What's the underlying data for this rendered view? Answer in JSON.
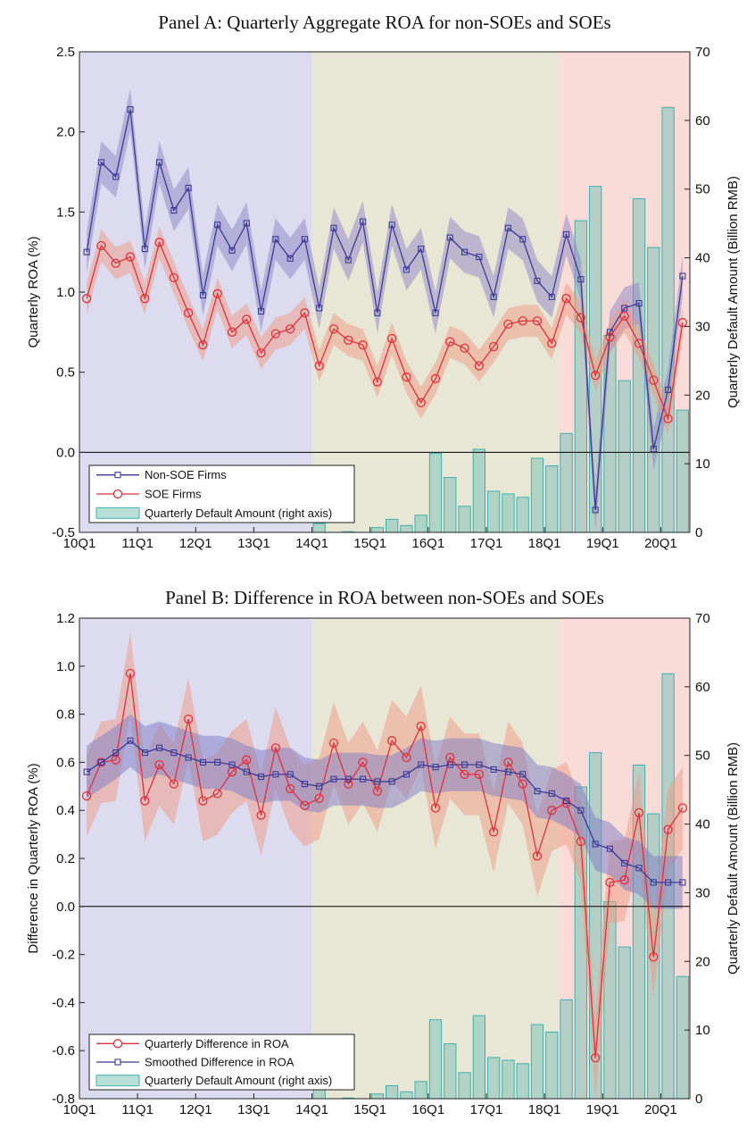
{
  "colors": {
    "nonsoe": "#3a3a96",
    "nonsoe_band": "#8e86c4",
    "soe": "#e0303c",
    "soe_band": "#ee9a82",
    "bar_fill": "#7fc4b8",
    "bar_edge": "#3fb0b0",
    "bg_period1": "#dddbef",
    "bg_period2": "#e8e7d6",
    "bg_period3": "#f9dbd8",
    "smooth_band": "#7e7cc6"
  },
  "x_ticks": [
    "10Q1",
    "11Q1",
    "12Q1",
    "13Q1",
    "14Q1",
    "15Q1",
    "16Q1",
    "17Q1",
    "18Q1",
    "19Q1",
    "20Q1"
  ],
  "chart_data": [
    {
      "type": "line",
      "title": "Panel A: Quarterly Aggregate ROA for non-SOEs and SOEs",
      "ylabel": "Quarterly ROA (%)",
      "y2label": "Quarterly Default Amount (Billion RMB)",
      "ylim": [
        -0.5,
        2.5
      ],
      "yticks": [
        "-0.5",
        "0.0",
        "0.5",
        "1.0",
        "1.5",
        "2.0",
        "2.5"
      ],
      "y2lim": [
        0,
        70
      ],
      "y2ticks": [
        "0",
        "10",
        "20",
        "30",
        "40",
        "50",
        "60",
        "70"
      ],
      "periods": [
        {
          "start": 0,
          "end": 16
        },
        {
          "start": 16,
          "end": 33
        },
        {
          "start": 33,
          "end": 42
        }
      ],
      "zero_line": 0,
      "legend": [
        "Non-SOE Firms",
        "SOE Firms",
        "Quarterly Default Amount (right axis)"
      ],
      "legend_position": "bottom-left",
      "series": [
        {
          "name": "Non-SOE Firms",
          "marker": "square",
          "band": 0.13,
          "values": [
            1.25,
            1.81,
            1.72,
            2.14,
            1.27,
            1.81,
            1.51,
            1.65,
            0.98,
            1.42,
            1.26,
            1.43,
            0.88,
            1.33,
            1.21,
            1.33,
            0.9,
            1.4,
            1.2,
            1.44,
            0.87,
            1.42,
            1.14,
            1.27,
            0.87,
            1.34,
            1.25,
            1.22,
            0.97,
            1.4,
            1.33,
            1.07,
            0.97,
            1.36,
            1.08,
            -0.36,
            0.75,
            0.9,
            0.93,
            0.02,
            0.39,
            1.1
          ]
        },
        {
          "name": "SOE Firms",
          "marker": "circle",
          "band": 0.1,
          "values": [
            0.96,
            1.29,
            1.18,
            1.22,
            0.96,
            1.31,
            1.09,
            0.87,
            0.67,
            0.99,
            0.75,
            0.83,
            0.62,
            0.74,
            0.77,
            0.87,
            0.54,
            0.77,
            0.7,
            0.67,
            0.44,
            0.71,
            0.47,
            0.31,
            0.46,
            0.69,
            0.65,
            0.54,
            0.66,
            0.8,
            0.82,
            0.82,
            0.68,
            0.96,
            0.84,
            0.48,
            0.72,
            0.85,
            0.68,
            0.45,
            0.21,
            0.81
          ]
        }
      ],
      "bars": {
        "name": "Quarterly Default Amount (right axis)",
        "start_index": 16,
        "values": [
          1.3,
          0.0,
          0.1,
          0.0,
          0.7,
          1.9,
          1.0,
          2.5,
          11.5,
          8.0,
          3.8,
          12.1,
          6.0,
          5.6,
          5.1,
          10.8,
          9.7,
          14.4,
          45.4,
          50.4,
          28.7,
          22.1,
          48.6,
          41.5,
          61.9,
          17.8
        ]
      }
    },
    {
      "type": "line",
      "title": "Panel B: Difference in ROA between non-SOEs and SOEs",
      "ylabel": "Difference in Quarterly ROA (%)",
      "y2label": "Quarterly Default Amount (Billion RMB)",
      "ylim": [
        -0.8,
        1.2
      ],
      "yticks": [
        "-0.8",
        "-0.6",
        "-0.4",
        "-0.2",
        "0.0",
        "0.2",
        "0.4",
        "0.6",
        "0.8",
        "1.0",
        "1.2"
      ],
      "y2lim": [
        0,
        70
      ],
      "y2ticks": [
        "0",
        "10",
        "20",
        "30",
        "40",
        "50",
        "60",
        "70"
      ],
      "periods": [
        {
          "start": 0,
          "end": 16
        },
        {
          "start": 16,
          "end": 33
        },
        {
          "start": 33,
          "end": 42
        }
      ],
      "zero_line": 0,
      "legend": [
        "Quarterly Difference in ROA",
        "Smoothed Difference in ROA",
        "Quarterly Default Amount (right axis)"
      ],
      "legend_position": "bottom-left",
      "series": [
        {
          "name": "Quarterly Difference in ROA",
          "marker": "circle",
          "band": 0.17,
          "values": [
            0.46,
            0.6,
            0.61,
            0.97,
            0.44,
            0.59,
            0.51,
            0.78,
            0.44,
            0.47,
            0.56,
            0.61,
            0.38,
            0.66,
            0.49,
            0.42,
            0.45,
            0.68,
            0.51,
            0.6,
            0.48,
            0.69,
            0.62,
            0.75,
            0.41,
            0.62,
            0.55,
            0.55,
            0.31,
            0.6,
            0.51,
            0.21,
            0.4,
            0.43,
            0.27,
            -0.63,
            0.1,
            0.11,
            0.39,
            -0.21,
            0.32,
            0.41
          ]
        },
        {
          "name": "Smoothed Difference in ROA",
          "marker": "square",
          "band": 0.11,
          "values": [
            0.56,
            0.6,
            0.64,
            0.69,
            0.64,
            0.66,
            0.64,
            0.62,
            0.6,
            0.6,
            0.59,
            0.56,
            0.54,
            0.55,
            0.55,
            0.51,
            0.5,
            0.53,
            0.53,
            0.53,
            0.52,
            0.52,
            0.55,
            0.59,
            0.58,
            0.59,
            0.59,
            0.59,
            0.57,
            0.56,
            0.55,
            0.48,
            0.47,
            0.44,
            0.4,
            0.26,
            0.24,
            0.18,
            0.16,
            0.1,
            0.1,
            0.1
          ]
        }
      ],
      "bars": {
        "name": "Quarterly Default Amount (right axis)",
        "start_index": 16,
        "values": [
          1.3,
          0.0,
          0.1,
          0.0,
          0.7,
          1.9,
          1.0,
          2.5,
          11.5,
          8.0,
          3.8,
          12.1,
          6.0,
          5.6,
          5.1,
          10.8,
          9.7,
          14.4,
          45.4,
          50.4,
          28.7,
          22.1,
          48.6,
          41.5,
          61.9,
          17.8
        ]
      }
    }
  ]
}
